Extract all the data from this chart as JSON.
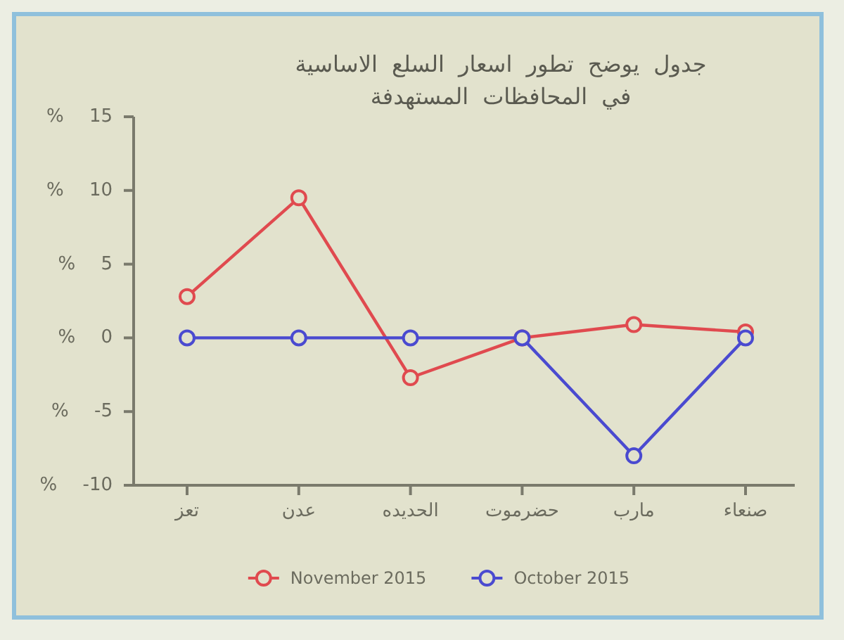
{
  "chart_data": {
    "type": "line",
    "title": "جدول يوضح تطور اسعار السلع الاساسية في المحافظات المستهدفة",
    "categories": [
      "تعز",
      "عدن",
      "الحديده",
      "حضرموت",
      "مارب",
      "صنعاء"
    ],
    "series": [
      {
        "name": "November 2015",
        "color": "#e04a4f",
        "values": [
          2.8,
          9.5,
          -2.7,
          0,
          0.9,
          0.4
        ]
      },
      {
        "name": "October 2015",
        "color": "#4a4ad0",
        "values": [
          0,
          0,
          0,
          0,
          -8,
          0
        ]
      }
    ],
    "ylim": [
      -10,
      15
    ],
    "yticks": [
      {
        "value": -10,
        "label": "% -10"
      },
      {
        "value": -5,
        "label": "% -5"
      },
      {
        "value": 0,
        "label": "% 0"
      },
      {
        "value": 5,
        "label": "% 5"
      },
      {
        "value": 10,
        "label": "% 10"
      },
      {
        "value": 15,
        "label": "% 15"
      }
    ],
    "legend": "bottom",
    "marker": "circle",
    "line_style": "solid"
  }
}
